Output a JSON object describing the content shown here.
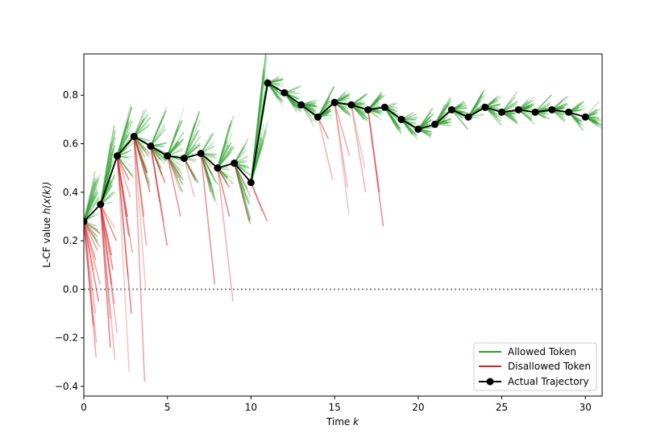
{
  "chart_data": {
    "type": "line",
    "title": "",
    "xlabel": "Time",
    "xlabel_var": "k",
    "ylabel_prefix": "L-CF value ",
    "ylabel_var": "h(x(k))",
    "xlim": [
      0,
      31
    ],
    "ylim": [
      -0.44,
      0.97
    ],
    "xticks": [
      0,
      5,
      10,
      15,
      20,
      25,
      30
    ],
    "xtick_labels": [
      "0",
      "5",
      "10",
      "15",
      "20",
      "25",
      "30"
    ],
    "yticks": [
      -0.4,
      -0.2,
      0.0,
      0.2,
      0.4,
      0.6,
      0.8
    ],
    "ytick_labels": [
      "−0.4",
      "−0.2",
      "0.0",
      "0.2",
      "0.4",
      "0.6",
      "0.8"
    ],
    "reference_line": {
      "y": 0.0,
      "style": "dotted",
      "color": "#808080"
    },
    "legend": {
      "position": "bottom-right",
      "entries": [
        {
          "label": "Allowed Token",
          "color": "#2ca02c"
        },
        {
          "label": "Disallowed Token",
          "color": "#d62728"
        },
        {
          "label": "Actual Trajectory",
          "color": "#000000"
        }
      ]
    },
    "series": [
      {
        "name": "Actual Trajectory",
        "x": [
          0,
          1,
          2,
          3,
          4,
          5,
          6,
          7,
          8,
          9,
          10,
          11,
          12,
          13,
          14,
          15,
          16,
          17,
          18,
          19,
          20,
          21,
          22,
          23,
          24,
          25,
          26,
          27,
          28,
          29,
          30
        ],
        "values": [
          0.28,
          0.35,
          0.55,
          0.63,
          0.59,
          0.55,
          0.54,
          0.56,
          0.5,
          0.52,
          0.44,
          0.85,
          0.81,
          0.76,
          0.71,
          0.77,
          0.76,
          0.74,
          0.75,
          0.7,
          0.66,
          0.68,
          0.74,
          0.71,
          0.75,
          0.73,
          0.74,
          0.73,
          0.74,
          0.73,
          0.71
        ]
      }
    ],
    "candidate_rays": {
      "disallowed_endpoints": [
        {
          "k": 0,
          "lows": [
            -0.28,
            -0.22,
            -0.15,
            -0.1,
            -0.05,
            0.02,
            0.08,
            0.12,
            0.16,
            0.2,
            0.23
          ]
        },
        {
          "k": 1,
          "lows": [
            -0.29,
            -0.24,
            -0.18,
            -0.12,
            -0.06,
            0.02,
            0.08,
            0.14,
            0.2,
            0.25
          ]
        },
        {
          "k": 2,
          "lows": [
            -0.34,
            -0.1,
            0.05,
            0.15,
            0.22,
            0.3,
            0.38,
            0.45
          ]
        },
        {
          "k": 3,
          "lows": [
            -0.38,
            0.0,
            0.18,
            0.3,
            0.4,
            0.48,
            0.55
          ]
        },
        {
          "k": 4,
          "lows": [
            0.18,
            0.28,
            0.36,
            0.44,
            0.5
          ]
        },
        {
          "k": 5,
          "lows": [
            0.3,
            0.4,
            0.46
          ]
        },
        {
          "k": 6,
          "lows": [
            0.38,
            0.45
          ]
        },
        {
          "k": 7,
          "lows": [
            0.02,
            0.4,
            0.47
          ]
        },
        {
          "k": 8,
          "lows": [
            -0.05,
            0.3,
            0.42
          ]
        },
        {
          "k": 9,
          "lows": [
            0.28,
            0.38
          ]
        },
        {
          "k": 10,
          "lows": [
            0.28,
            0.32
          ]
        },
        {
          "k": 14,
          "lows": [
            0.45,
            0.62
          ]
        },
        {
          "k": 15,
          "lows": [
            0.31,
            0.42,
            0.55
          ]
        },
        {
          "k": 16,
          "lows": [
            0.4,
            0.5
          ]
        },
        {
          "k": 17,
          "lows": [
            0.26,
            0.4
          ]
        }
      ]
    }
  }
}
